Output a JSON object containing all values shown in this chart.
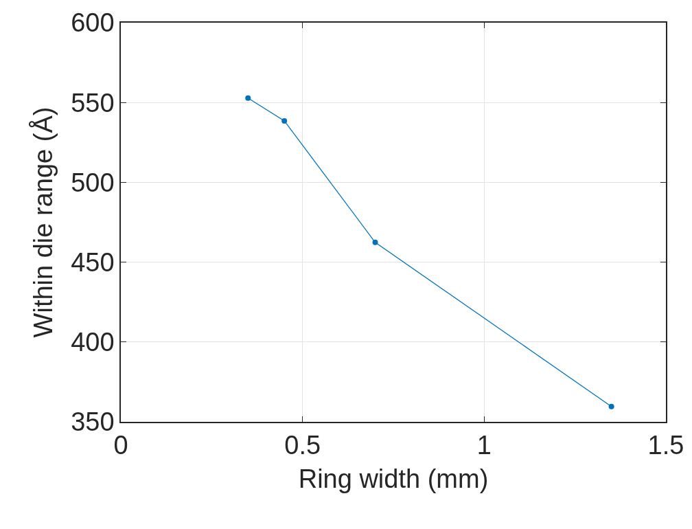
{
  "chart_data": {
    "type": "line",
    "xlabel": "Ring width (mm)",
    "ylabel": "Within die range (Å)",
    "x": [
      0.35,
      0.45,
      0.7,
      1.35
    ],
    "series": [
      {
        "color": "#0072bd",
        "values": [
          552.8,
          538.5,
          462.4,
          359.6
        ]
      }
    ],
    "xlim": [
      0,
      1.5
    ],
    "xticks": [
      0,
      0.5,
      1,
      1.5
    ],
    "ylim": [
      350,
      600
    ],
    "yticks": [
      350,
      400,
      450,
      500,
      550,
      600
    ],
    "grid": true,
    "marker": "circle",
    "line_style": "solid",
    "legend": false
  }
}
